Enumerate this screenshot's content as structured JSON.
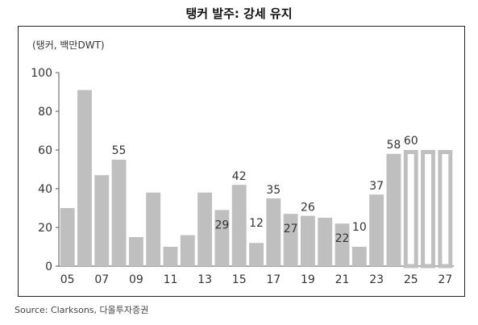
{
  "title": "탱커 발주: 강세 유지",
  "source": "Source: Clarksons, 다올투자증권",
  "chart_data": {
    "type": "bar",
    "unit_label": "(탱커, 백만DWT)",
    "ylim": [
      0,
      100
    ],
    "y_ticks": [
      0,
      20,
      40,
      60,
      80,
      100
    ],
    "x_tick_labels": [
      "05",
      "07",
      "09",
      "11",
      "13",
      "15",
      "17",
      "19",
      "21",
      "23",
      "25",
      "27"
    ],
    "categories": [
      "05",
      "06",
      "07",
      "08",
      "09",
      "10",
      "11",
      "12",
      "13",
      "14",
      "15",
      "16",
      "17",
      "18",
      "19",
      "20",
      "21",
      "22",
      "23",
      "24",
      "25",
      "26",
      "27"
    ],
    "values": [
      30,
      91,
      47,
      55,
      15,
      38,
      10,
      16,
      38,
      29,
      42,
      12,
      35,
      27,
      26,
      25,
      22,
      10,
      37,
      58,
      60,
      60,
      60
    ],
    "projected": [
      false,
      false,
      false,
      false,
      false,
      false,
      false,
      false,
      false,
      false,
      false,
      false,
      false,
      false,
      false,
      false,
      false,
      false,
      false,
      false,
      true,
      true,
      true
    ],
    "data_labels": [
      {
        "category": "08",
        "text": "55"
      },
      {
        "category": "14",
        "text": "29"
      },
      {
        "category": "15",
        "text": "42"
      },
      {
        "category": "16",
        "text": "12"
      },
      {
        "category": "17",
        "text": "35"
      },
      {
        "category": "18",
        "text": "27"
      },
      {
        "category": "19",
        "text": "26"
      },
      {
        "category": "21",
        "text": "22"
      },
      {
        "category": "22",
        "text": "10"
      },
      {
        "category": "23",
        "text": "37"
      },
      {
        "category": "24",
        "text": "58"
      },
      {
        "category": "25",
        "text": "60"
      }
    ],
    "bar_color": "#bfbfbf",
    "grid": false
  }
}
